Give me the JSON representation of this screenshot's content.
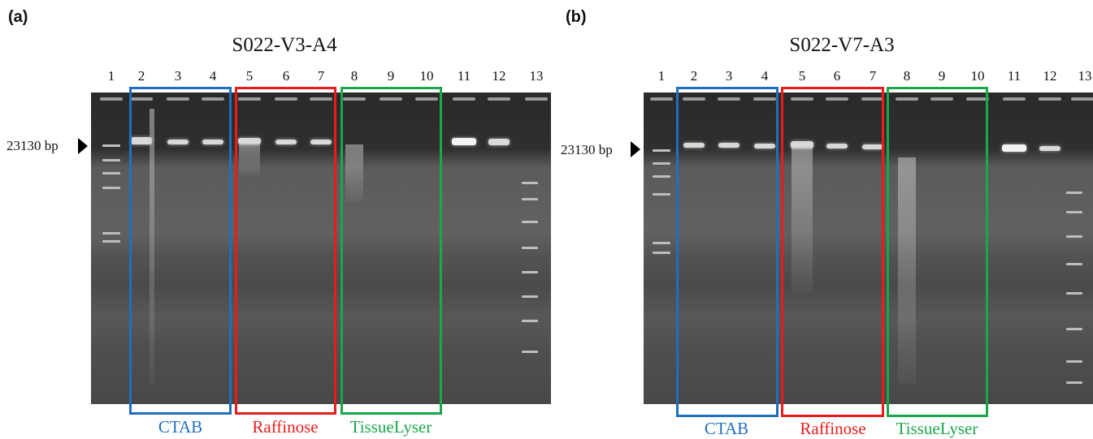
{
  "panels": [
    {
      "id": "a",
      "label": "(a)",
      "title": "S022-V3-A4",
      "marker_label": "23130 bp",
      "lanes": [
        "1",
        "2",
        "3",
        "4",
        "5",
        "6",
        "7",
        "8",
        "9",
        "10",
        "11",
        "12",
        "13"
      ],
      "groups": [
        {
          "name": "CTAB",
          "color": "#1f6fbf"
        },
        {
          "name": "Raffinose",
          "color": "#e81c1c"
        },
        {
          "name": "TissueLyser",
          "color": "#1aa84a"
        }
      ]
    },
    {
      "id": "b",
      "label": "(b)",
      "title": "S022-V7-A3",
      "marker_label": "23130 bp",
      "lanes": [
        "1",
        "2",
        "3",
        "4",
        "5",
        "6",
        "7",
        "8",
        "9",
        "10",
        "11",
        "12",
        "13"
      ],
      "groups": [
        {
          "name": "CTAB",
          "color": "#1f6fbf"
        },
        {
          "name": "Raffinose",
          "color": "#e81c1c"
        },
        {
          "name": "TissueLyser",
          "color": "#1aa84a"
        }
      ]
    }
  ]
}
